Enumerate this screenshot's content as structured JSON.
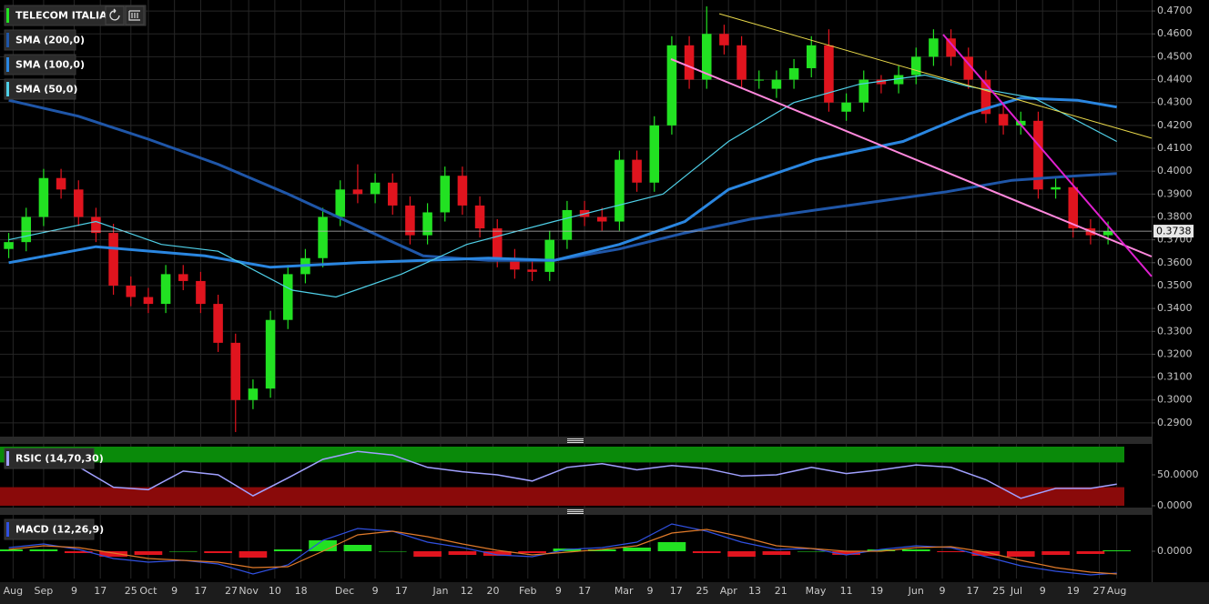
{
  "chart_data": [
    {
      "type": "candlestick",
      "title": "TELECOM ITALIA",
      "up_color": "#22e122",
      "down_color": "#e0141e",
      "grid": true,
      "xlim": [
        -2,
        262
      ],
      "ylim": [
        0.284,
        0.4748
      ],
      "yticks": [
        {
          "value": 0.29,
          "label": "0.2900"
        },
        {
          "value": 0.3,
          "label": "0.3000"
        },
        {
          "value": 0.31,
          "label": "0.3100"
        },
        {
          "value": 0.32,
          "label": "0.3200"
        },
        {
          "value": 0.33,
          "label": "0.3300"
        },
        {
          "value": 0.34,
          "label": "0.3400"
        },
        {
          "value": 0.35,
          "label": "0.3500"
        },
        {
          "value": 0.36,
          "label": "0.3600"
        },
        {
          "value": 0.37,
          "label": "0.3700"
        },
        {
          "value": 0.38,
          "label": "0.3800"
        },
        {
          "value": 0.39,
          "label": "0.3900"
        },
        {
          "value": 0.4,
          "label": "0.4000"
        },
        {
          "value": 0.41,
          "label": "0.4100"
        },
        {
          "value": 0.42,
          "label": "0.4200"
        },
        {
          "value": 0.43,
          "label": "0.4300"
        },
        {
          "value": 0.44,
          "label": "0.4400"
        },
        {
          "value": 0.45,
          "label": "0.4500"
        },
        {
          "value": 0.46,
          "label": "0.4600"
        },
        {
          "value": 0.47,
          "label": "0.4700"
        }
      ],
      "xticks": [
        {
          "value": 1,
          "label": "Aug"
        },
        {
          "value": 8,
          "label": "Sep"
        },
        {
          "value": 15,
          "label": "9"
        },
        {
          "value": 21,
          "label": "17"
        },
        {
          "value": 28,
          "label": "25"
        },
        {
          "value": 32,
          "label": "Oct"
        },
        {
          "value": 38,
          "label": "9"
        },
        {
          "value": 44,
          "label": "17"
        },
        {
          "value": 51,
          "label": "27"
        },
        {
          "value": 55,
          "label": "Nov"
        },
        {
          "value": 61,
          "label": "10"
        },
        {
          "value": 67,
          "label": "18"
        },
        {
          "value": 77,
          "label": "Dec"
        },
        {
          "value": 84,
          "label": "9"
        },
        {
          "value": 90,
          "label": "17"
        },
        {
          "value": 99,
          "label": "Jan"
        },
        {
          "value": 105,
          "label": "12"
        },
        {
          "value": 111,
          "label": "20"
        },
        {
          "value": 119,
          "label": "Feb"
        },
        {
          "value": 126,
          "label": "9"
        },
        {
          "value": 132,
          "label": "17"
        },
        {
          "value": 141,
          "label": "Mar"
        },
        {
          "value": 147,
          "label": "9"
        },
        {
          "value": 153,
          "label": "17"
        },
        {
          "value": 159,
          "label": "25"
        },
        {
          "value": 165,
          "label": "Apr"
        },
        {
          "value": 171,
          "label": "13"
        },
        {
          "value": 177,
          "label": "21"
        },
        {
          "value": 185,
          "label": "May"
        },
        {
          "value": 192,
          "label": "11"
        },
        {
          "value": 199,
          "label": "19"
        },
        {
          "value": 208,
          "label": "Jun"
        },
        {
          "value": 214,
          "label": "9"
        },
        {
          "value": 221,
          "label": "17"
        },
        {
          "value": 227,
          "label": "25"
        },
        {
          "value": 231,
          "label": "Jul"
        },
        {
          "value": 237,
          "label": "9"
        },
        {
          "value": 244,
          "label": "19"
        },
        {
          "value": 250,
          "label": "27"
        },
        {
          "value": 254,
          "label": "Aug"
        }
      ],
      "x": [
        0,
        4,
        8,
        12,
        16,
        20,
        24,
        28,
        32,
        36,
        40,
        44,
        48,
        52,
        56,
        60,
        64,
        68,
        72,
        76,
        80,
        84,
        88,
        92,
        96,
        100,
        104,
        108,
        112,
        116,
        120,
        124,
        128,
        132,
        136,
        140,
        144,
        148,
        152,
        156,
        160,
        164,
        168,
        172,
        176,
        180,
        184,
        188,
        192,
        196,
        200,
        204,
        208,
        212,
        216,
        220,
        224,
        228,
        232,
        236,
        240,
        244,
        248,
        252
      ],
      "open": [
        0.366,
        0.369,
        0.38,
        0.397,
        0.392,
        0.38,
        0.373,
        0.35,
        0.345,
        0.342,
        0.355,
        0.352,
        0.342,
        0.325,
        0.3,
        0.305,
        0.335,
        0.355,
        0.362,
        0.38,
        0.392,
        0.39,
        0.395,
        0.385,
        0.372,
        0.382,
        0.398,
        0.385,
        0.375,
        0.362,
        0.357,
        0.356,
        0.37,
        0.383,
        0.38,
        0.378,
        0.405,
        0.395,
        0.42,
        0.455,
        0.44,
        0.46,
        0.455,
        0.44,
        0.436,
        0.44,
        0.445,
        0.455,
        0.426,
        0.43,
        0.44,
        0.438,
        0.442,
        0.45,
        0.458,
        0.45,
        0.44,
        0.425,
        0.42,
        0.422,
        0.392,
        0.393,
        0.375,
        0.372
      ],
      "high": [
        0.373,
        0.384,
        0.401,
        0.401,
        0.396,
        0.384,
        0.377,
        0.354,
        0.349,
        0.359,
        0.359,
        0.356,
        0.346,
        0.329,
        0.309,
        0.339,
        0.359,
        0.366,
        0.384,
        0.396,
        0.403,
        0.399,
        0.399,
        0.389,
        0.386,
        0.402,
        0.402,
        0.389,
        0.379,
        0.366,
        0.361,
        0.374,
        0.387,
        0.387,
        0.384,
        0.409,
        0.409,
        0.424,
        0.459,
        0.459,
        0.472,
        0.464,
        0.459,
        0.444,
        0.444,
        0.449,
        0.459,
        0.462,
        0.434,
        0.444,
        0.442,
        0.446,
        0.454,
        0.462,
        0.462,
        0.454,
        0.444,
        0.429,
        0.426,
        0.426,
        0.397,
        0.397,
        0.379,
        0.378
      ],
      "low": [
        0.362,
        0.365,
        0.376,
        0.388,
        0.376,
        0.369,
        0.346,
        0.341,
        0.338,
        0.338,
        0.348,
        0.338,
        0.321,
        0.286,
        0.296,
        0.301,
        0.331,
        0.351,
        0.358,
        0.376,
        0.386,
        0.386,
        0.381,
        0.368,
        0.368,
        0.378,
        0.381,
        0.371,
        0.358,
        0.353,
        0.352,
        0.352,
        0.366,
        0.376,
        0.374,
        0.374,
        0.391,
        0.391,
        0.416,
        0.436,
        0.436,
        0.451,
        0.436,
        0.436,
        0.432,
        0.436,
        0.441,
        0.426,
        0.422,
        0.426,
        0.434,
        0.434,
        0.438,
        0.446,
        0.446,
        0.436,
        0.421,
        0.416,
        0.416,
        0.388,
        0.388,
        0.371,
        0.368,
        0.368
      ],
      "close": [
        0.369,
        0.38,
        0.397,
        0.392,
        0.38,
        0.373,
        0.35,
        0.345,
        0.342,
        0.355,
        0.352,
        0.342,
        0.325,
        0.3,
        0.305,
        0.335,
        0.355,
        0.362,
        0.38,
        0.392,
        0.39,
        0.395,
        0.385,
        0.372,
        0.382,
        0.398,
        0.385,
        0.375,
        0.362,
        0.357,
        0.356,
        0.37,
        0.383,
        0.38,
        0.378,
        0.405,
        0.395,
        0.42,
        0.455,
        0.44,
        0.46,
        0.455,
        0.44,
        0.44,
        0.44,
        0.445,
        0.455,
        0.43,
        0.43,
        0.44,
        0.438,
        0.442,
        0.45,
        0.458,
        0.45,
        0.44,
        0.425,
        0.42,
        0.422,
        0.392,
        0.393,
        0.375,
        0.372,
        0.3738
      ],
      "last_price": 0.3738,
      "series": [
        {
          "name": "SMA (200,0)",
          "color": "#1f56a8",
          "x": [
            0,
            16,
            32,
            48,
            64,
            80,
            95,
            110,
            125,
            140,
            155,
            170,
            185,
            200,
            215,
            230,
            245,
            254
          ],
          "values": [
            0.431,
            0.424,
            0.414,
            0.403,
            0.39,
            0.376,
            0.363,
            0.361,
            0.361,
            0.366,
            0.373,
            0.379,
            0.383,
            0.387,
            0.391,
            0.396,
            0.398,
            0.399
          ]
        },
        {
          "name": "SMA (100,0)",
          "color": "#2a86e0",
          "x": [
            0,
            20,
            45,
            60,
            80,
            110,
            125,
            140,
            155,
            165,
            185,
            205,
            220,
            232,
            245,
            254
          ],
          "values": [
            0.36,
            0.367,
            0.363,
            0.358,
            0.36,
            0.362,
            0.361,
            0.368,
            0.378,
            0.392,
            0.405,
            0.413,
            0.425,
            0.432,
            0.431,
            0.428
          ]
        },
        {
          "name": "SMA (50,0)",
          "color": "#4fd0e8",
          "x": [
            0,
            20,
            35,
            48,
            65,
            75,
            90,
            105,
            125,
            150,
            165,
            180,
            195,
            210,
            220,
            235,
            254
          ],
          "values": [
            0.37,
            0.378,
            0.368,
            0.365,
            0.348,
            0.345,
            0.355,
            0.368,
            0.378,
            0.39,
            0.413,
            0.43,
            0.438,
            0.442,
            0.437,
            0.432,
            0.413
          ]
        }
      ],
      "trendlines": [
        {
          "color": "#e8d84a",
          "x": [
            162.9,
            262
          ],
          "y": [
            0.4688,
            0.4144
          ]
        },
        {
          "color": "#ff88dd",
          "x": [
            151.8,
            262
          ],
          "y": [
            0.449,
            0.3627
          ]
        },
        {
          "color": "#e020d0",
          "x": [
            214.2,
            262
          ],
          "y": [
            0.4597,
            0.354
          ]
        }
      ]
    },
    {
      "type": "rsi",
      "title": "RSIC (14,70,30)",
      "overbought": 70,
      "oversold": 30,
      "upper_color": "#0a8a0a",
      "lower_color": "#8a0a0a",
      "ylim": [
        -3,
        100
      ],
      "yticks": [
        {
          "value": 50,
          "label": "50.0000"
        },
        {
          "value": 0,
          "label": "0.0000"
        }
      ],
      "x": [
        0,
        8,
        16,
        24,
        32,
        40,
        48,
        56,
        64,
        72,
        80,
        88,
        96,
        104,
        112,
        120,
        128,
        136,
        144,
        152,
        160,
        168,
        176,
        184,
        192,
        200,
        208,
        216,
        224,
        232,
        240,
        248,
        254
      ],
      "series": [
        {
          "color": "#a0a0ff",
          "values": [
            64,
            72,
            63,
            30,
            26,
            56,
            50,
            16,
            45,
            75,
            88,
            82,
            62,
            55,
            50,
            40,
            62,
            68,
            58,
            65,
            60,
            48,
            50,
            62,
            52,
            58,
            66,
            62,
            42,
            12,
            28,
            28,
            35
          ]
        }
      ]
    },
    {
      "type": "macd",
      "title": "MACD (12,26,9)",
      "hist_up": "#22e122",
      "hist_down": "#e0141e",
      "ylim": [
        -0.03,
        0.04
      ],
      "yticks": [
        {
          "value": 0,
          "label": "0.0000"
        }
      ],
      "x": [
        0,
        8,
        16,
        24,
        32,
        40,
        48,
        56,
        64,
        72,
        80,
        88,
        96,
        104,
        112,
        120,
        128,
        136,
        144,
        152,
        160,
        168,
        176,
        184,
        192,
        200,
        208,
        216,
        224,
        232,
        240,
        248,
        254
      ],
      "histogram": [
        0.002,
        0.002,
        -0.002,
        -0.006,
        -0.004,
        0,
        -0.002,
        -0.007,
        0.002,
        0.012,
        0.007,
        0,
        -0.006,
        -0.004,
        -0.005,
        -0.002,
        0.003,
        0.002,
        0.004,
        0.01,
        -0.002,
        -0.006,
        -0.004,
        0,
        -0.004,
        0.002,
        0.002,
        -0.001,
        -0.005,
        -0.006,
        -0.004,
        -0.003,
        0.001
      ],
      "series": [
        {
          "color": "#3050e0",
          "values": [
            0.004,
            0.008,
            0.002,
            -0.008,
            -0.012,
            -0.01,
            -0.014,
            -0.025,
            -0.015,
            0.012,
            0.025,
            0.022,
            0.01,
            0.004,
            -0.004,
            -0.006,
            0.002,
            0.004,
            0.01,
            0.03,
            0.022,
            0.01,
            0.002,
            0.003,
            -0.004,
            0.002,
            0.006,
            0.004,
            -0.006,
            -0.016,
            -0.022,
            -0.026,
            -0.024
          ]
        },
        {
          "color": "#e07a2a",
          "values": [
            0.002,
            0.006,
            0.004,
            -0.002,
            -0.008,
            -0.01,
            -0.012,
            -0.018,
            -0.017,
            0.0,
            0.018,
            0.022,
            0.016,
            0.008,
            0.001,
            -0.004,
            -0.001,
            0.002,
            0.006,
            0.02,
            0.024,
            0.016,
            0.006,
            0.003,
            0.0,
            0.0,
            0.004,
            0.005,
            -0.001,
            -0.01,
            -0.018,
            -0.023,
            -0.025
          ]
        }
      ]
    }
  ]
}
